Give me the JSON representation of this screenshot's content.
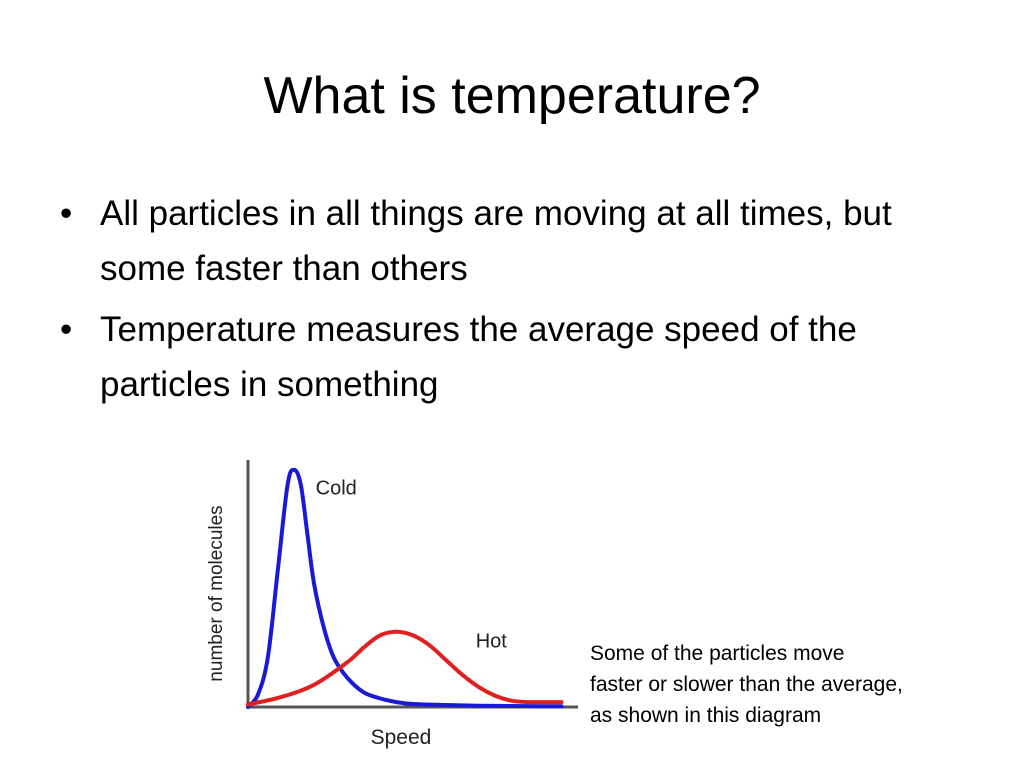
{
  "slide": {
    "title": "What is temperature?",
    "bullets": [
      "All particles in all things are moving at all times, but some faster than others",
      "Temperature measures the average speed of the particles in something"
    ],
    "bullet_symbol": "•",
    "caption_lines": [
      "Some of the particles move",
      "faster or slower than the average,",
      "as shown in this diagram"
    ]
  },
  "chart_data": {
    "type": "line",
    "title": "",
    "xlabel": "Speed",
    "ylabel": "number of molecules",
    "xlim": [
      0,
      10
    ],
    "ylim": [
      0,
      10
    ],
    "grid": false,
    "legend": "none",
    "series": [
      {
        "name": "Cold",
        "color": "#1a1ad6",
        "x": [
          0.0,
          0.3,
          0.6,
          0.9,
          1.2,
          1.4,
          1.6,
          1.8,
          2.0,
          2.3,
          2.6,
          3.0,
          3.5,
          4.0,
          4.5,
          5.0,
          6.0,
          7.0,
          8.0,
          9.0,
          9.5
        ],
        "y": [
          0.0,
          0.5,
          2.0,
          5.5,
          9.0,
          9.6,
          9.0,
          7.0,
          5.0,
          3.2,
          2.0,
          1.2,
          0.6,
          0.35,
          0.2,
          0.12,
          0.08,
          0.05,
          0.04,
          0.03,
          0.03
        ]
      },
      {
        "name": "Hot",
        "color": "#e02020",
        "x": [
          0.0,
          1.0,
          2.0,
          3.0,
          3.5,
          4.0,
          4.5,
          5.0,
          5.5,
          6.0,
          6.5,
          7.0,
          7.5,
          8.0,
          8.5,
          9.0,
          9.5
        ],
        "y": [
          0.1,
          0.4,
          0.9,
          1.8,
          2.4,
          2.9,
          3.05,
          2.9,
          2.5,
          1.9,
          1.3,
          0.8,
          0.45,
          0.25,
          0.2,
          0.2,
          0.2
        ]
      }
    ]
  }
}
